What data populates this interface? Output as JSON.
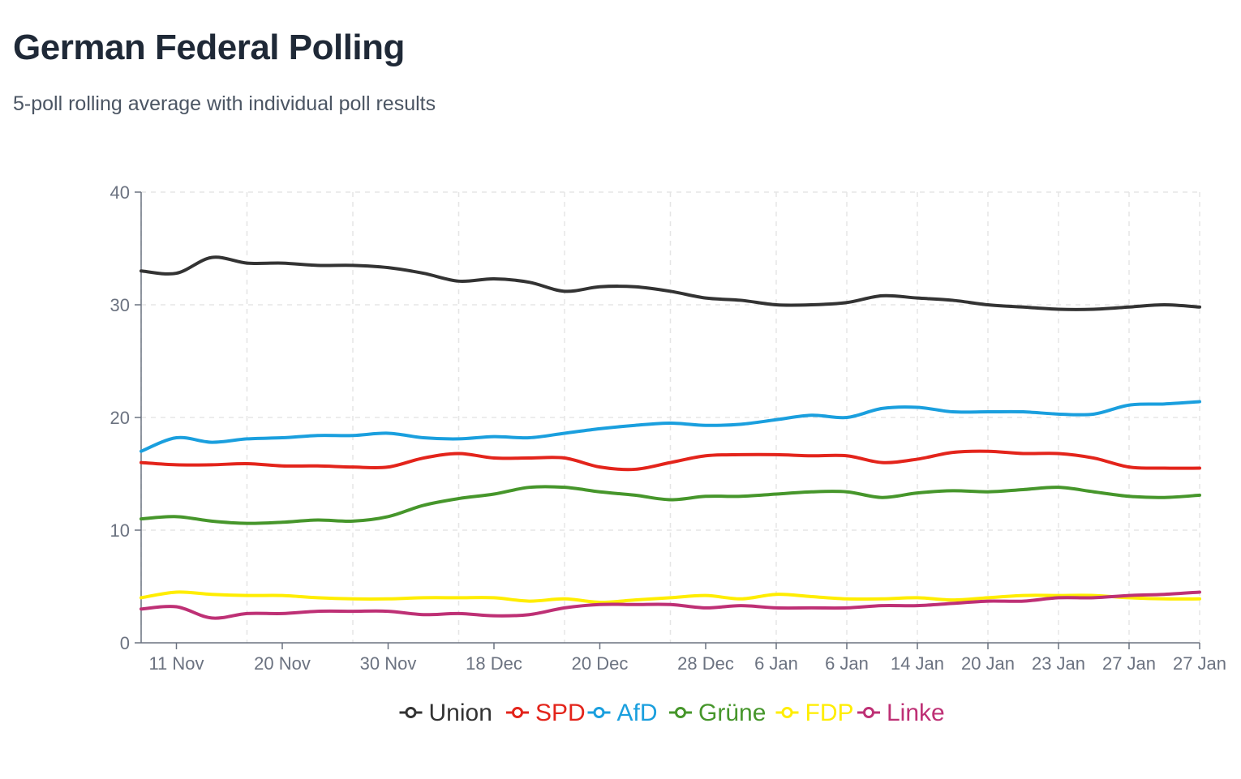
{
  "header": {
    "title": "German Federal Polling",
    "subtitle": "5-poll rolling average with individual poll results"
  },
  "chart_data": {
    "type": "line",
    "title": "German Federal Polling",
    "subtitle": "5-poll rolling average with individual poll results",
    "xlabel": "",
    "ylabel": "",
    "ylim": [
      0,
      40
    ],
    "yticks": [
      0,
      10,
      20,
      30,
      40
    ],
    "grid": true,
    "legend_position": "bottom-center",
    "x_tick_labels": [
      "11 Nov",
      "20 Nov",
      "30 Nov",
      "18 Dec",
      "20 Dec",
      "28 Dec",
      "6 Jan",
      "6 Jan",
      "14 Jan",
      "20 Jan",
      "23 Jan",
      "27 Jan",
      "27 Jan"
    ],
    "x_tick_positions": [
      0.5,
      2,
      3.5,
      5,
      6.5,
      8,
      9,
      10,
      11,
      12,
      13,
      14,
      15
    ],
    "x_grid_positions": [
      0,
      1.5,
      3,
      4.5,
      6,
      7.5,
      9,
      10,
      11,
      12,
      13,
      14,
      15
    ],
    "x_range": [
      0,
      15
    ],
    "series": [
      {
        "name": "Union",
        "color": "#333333",
        "x": [
          0,
          0.5,
          1,
          1.5,
          2,
          2.5,
          3,
          3.5,
          4,
          4.5,
          5,
          5.5,
          6,
          6.5,
          7,
          7.5,
          8,
          8.5,
          9,
          9.5,
          10,
          10.5,
          11,
          11.5,
          12,
          12.5,
          13,
          13.5,
          14,
          14.5,
          15
        ],
        "values": [
          33.0,
          32.8,
          34.2,
          33.7,
          33.7,
          33.5,
          33.5,
          33.3,
          32.8,
          32.1,
          32.3,
          32.0,
          31.2,
          31.6,
          31.6,
          31.2,
          30.6,
          30.4,
          30.0,
          30.0,
          30.2,
          30.8,
          30.6,
          30.4,
          30.0,
          29.8,
          29.6,
          29.6,
          29.8,
          30.0,
          29.8
        ]
      },
      {
        "name": "SPD",
        "color": "#e3241b",
        "x": [
          0,
          0.5,
          1,
          1.5,
          2,
          2.5,
          3,
          3.5,
          4,
          4.5,
          5,
          5.5,
          6,
          6.5,
          7,
          7.5,
          8,
          8.5,
          9,
          9.5,
          10,
          10.5,
          11,
          11.5,
          12,
          12.5,
          13,
          13.5,
          14,
          14.5,
          15
        ],
        "values": [
          16.0,
          15.8,
          15.8,
          15.9,
          15.7,
          15.7,
          15.6,
          15.6,
          16.4,
          16.8,
          16.4,
          16.4,
          16.4,
          15.6,
          15.4,
          16.0,
          16.6,
          16.7,
          16.7,
          16.6,
          16.6,
          16.0,
          16.3,
          16.9,
          17.0,
          16.8,
          16.8,
          16.4,
          15.6,
          15.5,
          15.5
        ]
      },
      {
        "name": "AfD",
        "color": "#1a9fde",
        "x": [
          0,
          0.5,
          1,
          1.5,
          2,
          2.5,
          3,
          3.5,
          4,
          4.5,
          5,
          5.5,
          6,
          6.5,
          7,
          7.5,
          8,
          8.5,
          9,
          9.5,
          10,
          10.5,
          11,
          11.5,
          12,
          12.5,
          13,
          13.5,
          14,
          14.5,
          15
        ],
        "values": [
          17.0,
          18.2,
          17.8,
          18.1,
          18.2,
          18.4,
          18.4,
          18.6,
          18.2,
          18.1,
          18.3,
          18.2,
          18.6,
          19.0,
          19.3,
          19.5,
          19.3,
          19.4,
          19.8,
          20.2,
          20.0,
          20.8,
          20.9,
          20.5,
          20.5,
          20.5,
          20.3,
          20.3,
          21.1,
          21.2,
          21.4
        ]
      },
      {
        "name": "Grüne",
        "color": "#46962b",
        "x": [
          0,
          0.5,
          1,
          1.5,
          2,
          2.5,
          3,
          3.5,
          4,
          4.5,
          5,
          5.5,
          6,
          6.5,
          7,
          7.5,
          8,
          8.5,
          9,
          9.5,
          10,
          10.5,
          11,
          11.5,
          12,
          12.5,
          13,
          13.5,
          14,
          14.5,
          15
        ],
        "values": [
          11.0,
          11.2,
          10.8,
          10.6,
          10.7,
          10.9,
          10.8,
          11.2,
          12.2,
          12.8,
          13.2,
          13.8,
          13.8,
          13.4,
          13.1,
          12.7,
          13.0,
          13.0,
          13.2,
          13.4,
          13.4,
          12.9,
          13.3,
          13.5,
          13.4,
          13.6,
          13.8,
          13.4,
          13.0,
          12.9,
          13.1
        ]
      },
      {
        "name": "FDP",
        "color": "#ffed00",
        "x": [
          0,
          0.5,
          1,
          1.5,
          2,
          2.5,
          3,
          3.5,
          4,
          4.5,
          5,
          5.5,
          6,
          6.5,
          7,
          7.5,
          8,
          8.5,
          9,
          9.5,
          10,
          10.5,
          11,
          11.5,
          12,
          12.5,
          13,
          13.5,
          14,
          14.5,
          15
        ],
        "values": [
          4.0,
          4.5,
          4.3,
          4.2,
          4.2,
          4.0,
          3.9,
          3.9,
          4.0,
          4.0,
          4.0,
          3.7,
          3.9,
          3.6,
          3.8,
          4.0,
          4.2,
          3.9,
          4.3,
          4.1,
          3.9,
          3.9,
          4.0,
          3.8,
          4.0,
          4.2,
          4.2,
          4.2,
          4.0,
          3.9,
          3.9
        ]
      },
      {
        "name": "Linke",
        "color": "#be3075",
        "x": [
          0,
          0.5,
          1,
          1.5,
          2,
          2.5,
          3,
          3.5,
          4,
          4.5,
          5,
          5.5,
          6,
          6.5,
          7,
          7.5,
          8,
          8.5,
          9,
          9.5,
          10,
          10.5,
          11,
          11.5,
          12,
          12.5,
          13,
          13.5,
          14,
          14.5,
          15
        ],
        "values": [
          3.0,
          3.2,
          2.2,
          2.6,
          2.6,
          2.8,
          2.8,
          2.8,
          2.5,
          2.6,
          2.4,
          2.5,
          3.1,
          3.4,
          3.4,
          3.4,
          3.1,
          3.3,
          3.1,
          3.1,
          3.1,
          3.3,
          3.3,
          3.5,
          3.7,
          3.7,
          4.0,
          4.0,
          4.2,
          4.3,
          4.5
        ]
      }
    ]
  }
}
